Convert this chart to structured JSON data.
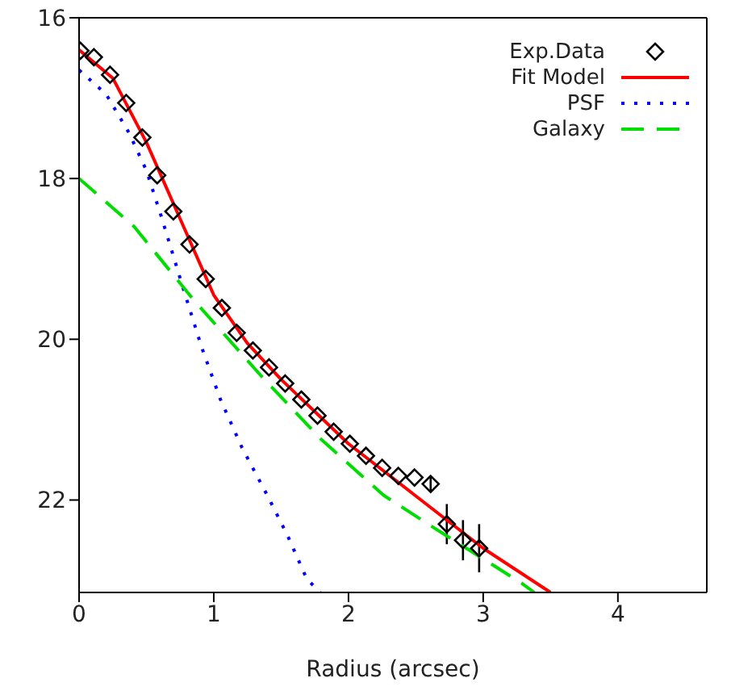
{
  "chart_data": {
    "type": "line",
    "xlabel": "Radius (arcsec)",
    "xlim": [
      0,
      4.66
    ],
    "ylim": [
      23.15,
      16
    ],
    "xticks": [
      0,
      1,
      2,
      3,
      4
    ],
    "yticks": [
      16,
      18,
      20,
      22
    ],
    "grid": false,
    "legend": "top right",
    "series": [
      {
        "name": "Exp.Data",
        "type": "scatter",
        "marker": "diamond",
        "color": "#000000",
        "x": [
          0.01,
          0.11,
          0.23,
          0.35,
          0.47,
          0.58,
          0.7,
          0.82,
          0.94,
          1.06,
          1.17,
          1.29,
          1.41,
          1.53,
          1.65,
          1.77,
          1.89,
          2.01,
          2.13,
          2.25,
          2.37,
          2.49,
          2.61,
          2.73,
          2.85,
          2.97
        ],
        "values": [
          16.41,
          16.49,
          16.71,
          17.06,
          17.49,
          17.96,
          18.41,
          18.82,
          19.25,
          19.61,
          19.92,
          20.14,
          20.35,
          20.55,
          20.75,
          20.95,
          21.15,
          21.3,
          21.45,
          21.6,
          21.7,
          21.72,
          21.8,
          22.3,
          22.5,
          22.6
        ],
        "errors": [
          null,
          null,
          null,
          null,
          null,
          null,
          null,
          null,
          null,
          null,
          null,
          null,
          null,
          null,
          null,
          null,
          null,
          null,
          null,
          null,
          null,
          null,
          0.1,
          0.25,
          0.25,
          0.3
        ]
      },
      {
        "name": "Fit Model",
        "line_style": "solid",
        "color": "#ff0000",
        "x": [
          0,
          0.25,
          0.5,
          0.75,
          1,
          1.25,
          1.5,
          2,
          2.5,
          3,
          3.5
        ],
        "values": [
          16.4,
          16.75,
          17.55,
          18.5,
          19.45,
          20.05,
          20.5,
          21.3,
          21.95,
          22.6,
          23.15
        ]
      },
      {
        "name": "PSF",
        "line_style": "dotted",
        "color": "#0000ff",
        "x": [
          0,
          0.2,
          0.37,
          0.5,
          0.61,
          0.77,
          0.91,
          1.05,
          1.21,
          1.4,
          1.55,
          1.69,
          1.79
        ],
        "values": [
          16.65,
          16.95,
          17.43,
          17.9,
          18.47,
          19.35,
          20.1,
          20.75,
          21.35,
          21.95,
          22.45,
          22.98,
          23.15
        ]
      },
      {
        "name": "Galaxy",
        "line_style": "dashed",
        "color": "#00dd00",
        "x": [
          0,
          0.41,
          0.85,
          1.37,
          1.8,
          2.26,
          2.62,
          3.29,
          3.38
        ],
        "values": [
          18.0,
          18.6,
          19.51,
          20.49,
          21.25,
          21.94,
          22.33,
          23.04,
          23.15
        ]
      }
    ]
  }
}
